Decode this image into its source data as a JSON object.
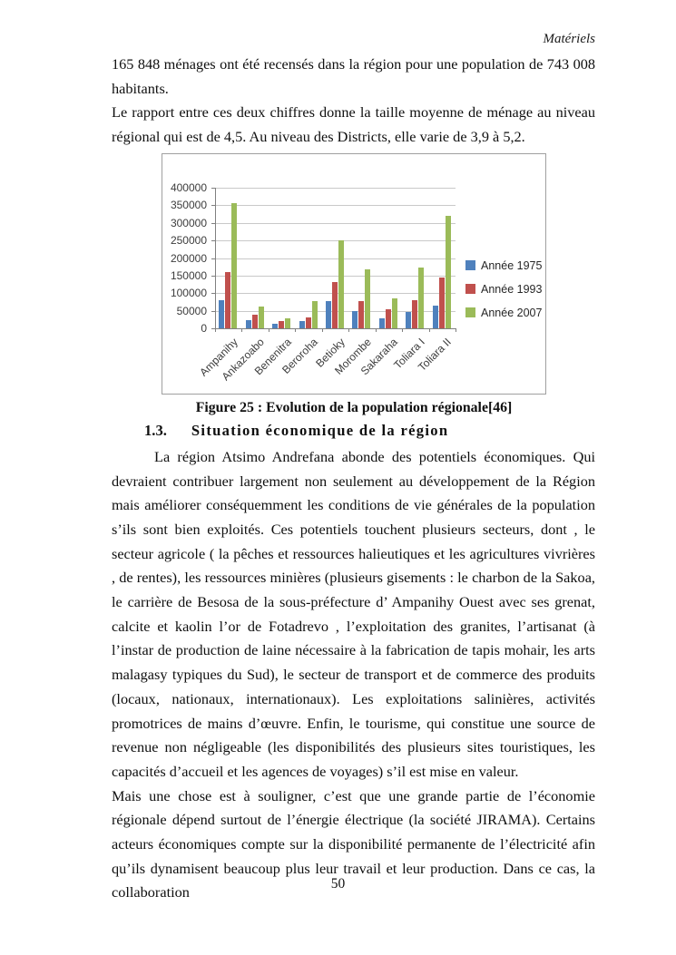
{
  "header": {
    "running_title": "Matériels"
  },
  "paragraphs": {
    "p1": "165 848 ménages ont été recensés dans la région pour une population de 743 008 habitants.",
    "p2": "Le rapport entre ces deux chiffres donne la taille moyenne de ménage au niveau régional qui est de 4,5. Au niveau des Districts, elle varie de 3,9 à 5,2.",
    "p3": "La région Atsimo Andrefana abonde des potentiels économiques. Qui devraient contribuer largement non seulement au développement de la Région mais améliorer conséquemment les conditions de vie générales de la population s’ils sont bien exploités. Ces potentiels touchent plusieurs secteurs, dont , le secteur agricole ( la pêches et ressources halieutiques et les agricultures vivrières , de rentes), les ressources minières (plusieurs gisements : le charbon de la Sakoa, le carrière de Besosa de la sous-préfecture d’ Ampanihy Ouest avec ses grenat, calcite et kaolin l’or de Fotadrevo , l’exploitation des granites, l’artisanat (à l’instar de production de laine nécessaire à la fabrication de tapis mohair, les arts malagasy typiques du Sud), le secteur de transport et de commerce des produits (locaux, nationaux, internationaux). Les exploitations salinières, activités promotrices de mains d’œuvre. Enfin, le tourisme, qui constitue une source de revenue non négligeable (les disponibilités des plusieurs sites touristiques, les capacités d’accueil et les agences de voyages) s’il est mise en valeur.",
    "p4": "Mais une chose est à souligner, c’est que une grande partie de l’économie régionale dépend surtout de l’énergie électrique (la société JIRAMA). Certains  acteurs économiques compte sur la disponibilité permanente de l’électricité afin qu’ils dynamisent beaucoup plus leur travail et leur production. Dans ce cas, la collaboration"
  },
  "figure": {
    "caption": "Figure 25 : Evolution de la population régionale[46]"
  },
  "section": {
    "number": "1.3.",
    "title": "Situation économique de la région"
  },
  "footer": {
    "page_number": "50"
  },
  "chart_data": {
    "type": "bar",
    "title": "",
    "categories": [
      "Ampanihy",
      "Ankazoabo",
      "Benenitra",
      "Beroroha",
      "Betioky",
      "Morombe",
      "Sakaraha",
      "Toliara I",
      "Toliara II"
    ],
    "series": [
      {
        "name": "Année 1975",
        "color": "#4F81BD",
        "values": [
          80000,
          22000,
          12000,
          21000,
          78000,
          48000,
          29000,
          47000,
          65000
        ]
      },
      {
        "name": "Année 1993",
        "color": "#C0504D",
        "values": [
          160000,
          38000,
          21000,
          31000,
          130000,
          76000,
          54000,
          80000,
          145000
        ]
      },
      {
        "name": "Année 2007",
        "color": "#9BBB59",
        "values": [
          355000,
          61000,
          28000,
          78000,
          250000,
          167000,
          86000,
          172000,
          320000
        ]
      }
    ],
    "xlabel": "",
    "ylabel": "",
    "ylim": [
      0,
      400000
    ],
    "yticks": [
      0,
      50000,
      100000,
      150000,
      200000,
      250000,
      300000,
      350000,
      400000
    ],
    "grid": true,
    "legend_position": "right",
    "axis_color": "#808080",
    "gridline_color": "#c9c9c9"
  }
}
